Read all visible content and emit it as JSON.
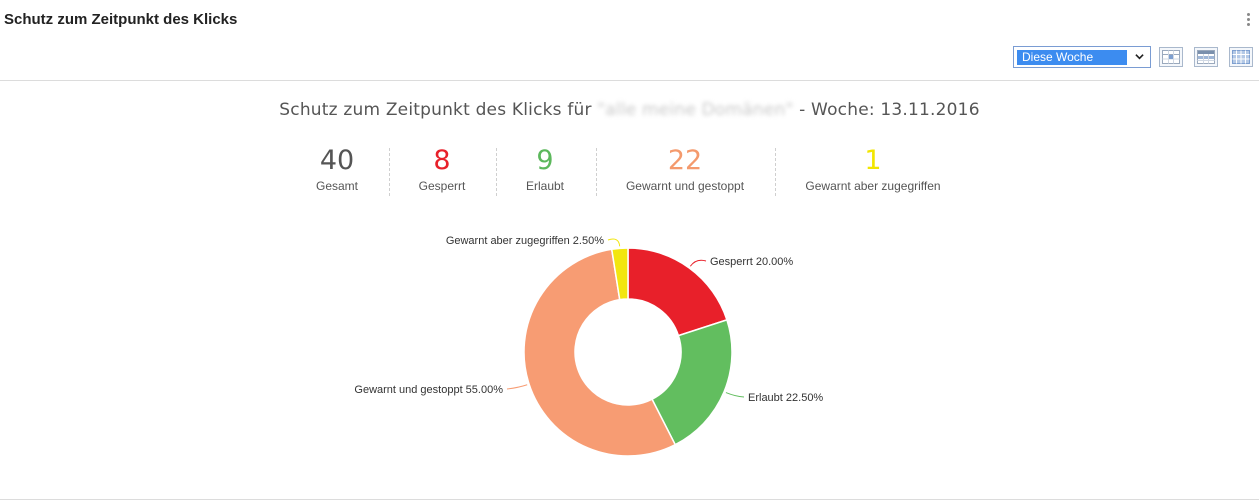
{
  "panel": {
    "title": "Schutz zum Zeitpunkt des Klicks",
    "menu_icon": "kebab-vertical-icon"
  },
  "toolbar": {
    "period_selected": "Diese Woche",
    "view_buttons": [
      {
        "icon": "calendar-day-icon"
      },
      {
        "icon": "calendar-week-icon"
      },
      {
        "icon": "calendar-month-icon"
      }
    ]
  },
  "chart_title": {
    "prefix": "Schutz zum Zeitpunkt des Klicks für ",
    "scope": "\"alle meine Domänen\"",
    "suffix": " - Woche: 13.11.2016"
  },
  "stats": [
    {
      "value": "40",
      "label": "Gesamt",
      "color": "#555555"
    },
    {
      "value": "8",
      "label": "Gesperrt",
      "color": "#e8202a"
    },
    {
      "value": "9",
      "label": "Erlaubt",
      "color": "#5cb85c"
    },
    {
      "value": "22",
      "label": "Gewarnt und gestoppt",
      "color": "#f49a6d"
    },
    {
      "value": "1",
      "label": "Gewarnt aber zugegriffen",
      "color": "#f2e600"
    }
  ],
  "chart_data": {
    "type": "pie",
    "donut": true,
    "slices": [
      {
        "label": "Gesperrt",
        "value": 8,
        "percent_label": "Gesperrt 20.00%",
        "color": "#e8202a"
      },
      {
        "label": "Erlaubt",
        "value": 9,
        "percent_label": "Erlaubt 22.50%",
        "color": "#62be5f"
      },
      {
        "label": "Gewarnt und gestoppt",
        "value": 22,
        "percent_label": "Gewarnt und gestoppt 55.00%",
        "color": "#f79c73"
      },
      {
        "label": "Gewarnt aber zugegriffen",
        "value": 1,
        "percent_label": "Gewarnt aber zugegriffen 2.50%",
        "color": "#f2e60f"
      }
    ],
    "total": 40
  }
}
